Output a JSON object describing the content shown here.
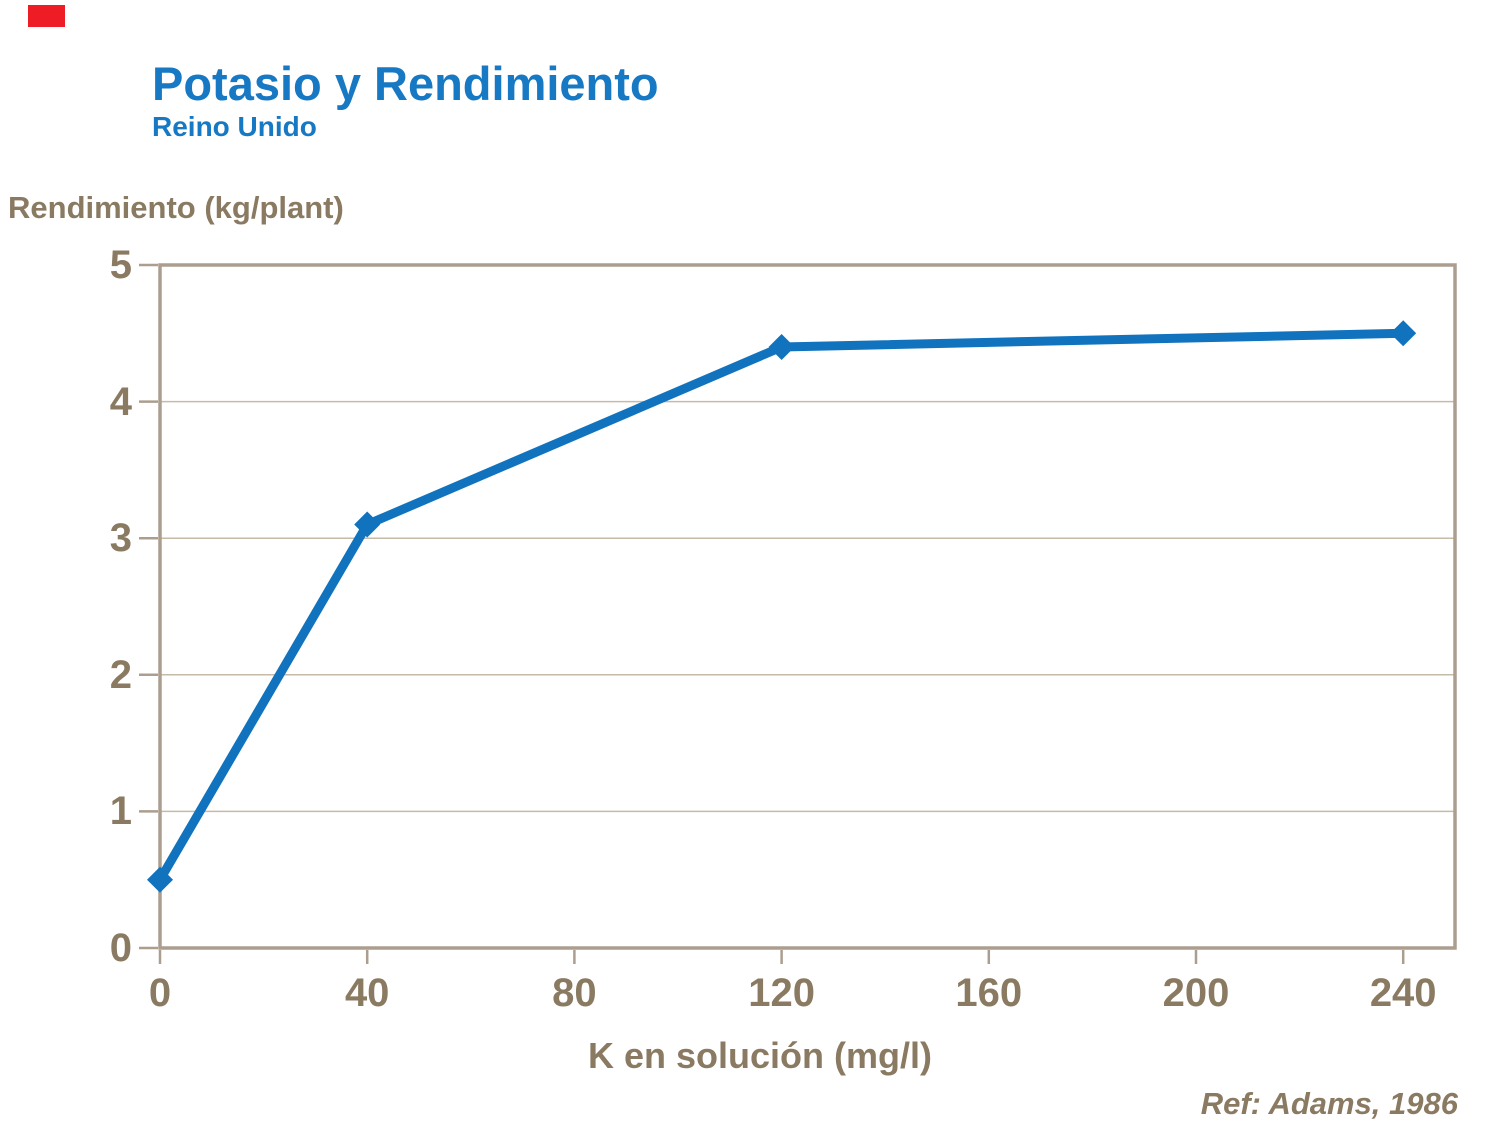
{
  "slide": {
    "title": "Potasio y Rendimiento",
    "subtitle": "Reino Unido",
    "reference": "Ref: Adams, 1986",
    "accent_color": "#ee1c25",
    "title_color": "#1778c3"
  },
  "chart_data": {
    "type": "line",
    "series": [
      {
        "name": "Rendimiento",
        "x": [
          0,
          40,
          120,
          240
        ],
        "y": [
          0.5,
          3.1,
          4.4,
          4.5
        ]
      }
    ],
    "xlabel": "K en solución (mg/l)",
    "ylabel": "Rendimiento (kg/plant)",
    "xlim": [
      0,
      250
    ],
    "ylim": [
      0,
      5
    ],
    "x_ticks": [
      0,
      40,
      80,
      120,
      160,
      200,
      240
    ],
    "y_ticks": [
      0,
      1,
      2,
      3,
      4,
      5
    ],
    "grid": "horizontal-only",
    "legend": "none",
    "marker": "diamond",
    "line_color": "#1173be",
    "axis_color": "#ac9e8f",
    "grid_color": "#c6bba9",
    "text_color": "#8a7a62"
  }
}
